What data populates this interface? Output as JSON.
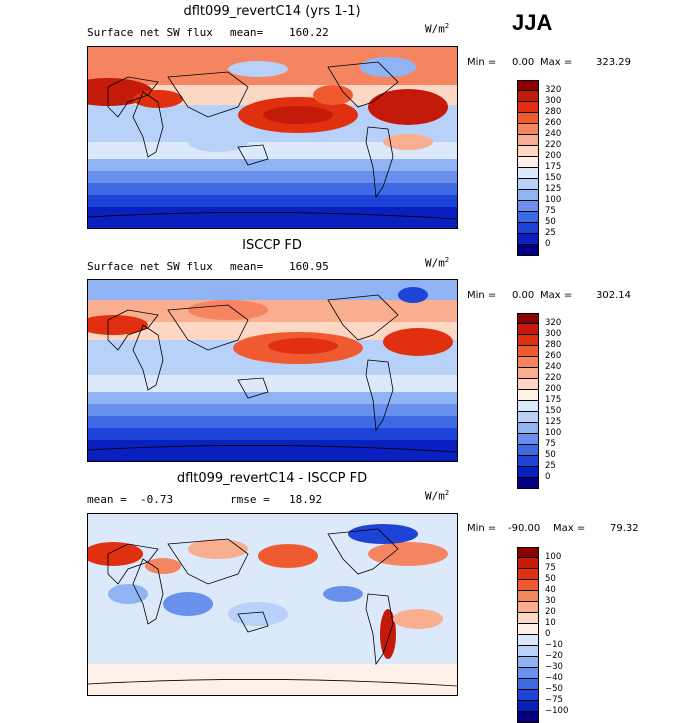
{
  "season": "JJA",
  "panels": [
    {
      "title": "dflt099_revertC14 (yrs 1-1)",
      "left_label": "Surface net SW flux",
      "stat_label": "mean=",
      "stat_value": "160.22",
      "units": "W/m",
      "units_exp": "2",
      "min_label": "Min =",
      "min_value": "0.00",
      "max_label": "Max =",
      "max_value": "323.29",
      "levels": [
        "320",
        "300",
        "280",
        "260",
        "240",
        "220",
        "200",
        "175",
        "150",
        "125",
        "100",
        "75",
        "50",
        "25",
        "0"
      ],
      "colors": [
        "#8b0000",
        "#c41a0a",
        "#e03010",
        "#f05a30",
        "#f58560",
        "#f9ae90",
        "#fcd8c4",
        "#fff1e8",
        "#dce9fb",
        "#b7d1f8",
        "#8fb3f3",
        "#6890ec",
        "#3e6ae3",
        "#1d44d6",
        "#0a1fbf",
        "#000080"
      ]
    },
    {
      "title": "ISCCP FD",
      "left_label": "Surface net SW flux",
      "stat_label": "mean=",
      "stat_value": "160.95",
      "units": "W/m",
      "units_exp": "2",
      "min_label": "Min =",
      "min_value": "0.00",
      "max_label": "Max =",
      "max_value": "302.14",
      "levels": [
        "320",
        "300",
        "280",
        "260",
        "240",
        "220",
        "200",
        "175",
        "150",
        "125",
        "100",
        "75",
        "50",
        "25",
        "0"
      ],
      "colors": [
        "#8b0000",
        "#c41a0a",
        "#e03010",
        "#f05a30",
        "#f58560",
        "#f9ae90",
        "#fcd8c4",
        "#fff1e8",
        "#dce9fb",
        "#b7d1f8",
        "#8fb3f3",
        "#6890ec",
        "#3e6ae3",
        "#1d44d6",
        "#0a1fbf",
        "#000080"
      ]
    },
    {
      "title": "dflt099_revertC14 - ISCCP FD",
      "left_label": "mean =",
      "stat_label": "rmse =",
      "left_value": "-0.73",
      "stat_value": "18.92",
      "units": "W/m",
      "units_exp": "2",
      "min_label": "Min =",
      "min_value": "-90.00",
      "max_label": "Max =",
      "max_value": "79.32",
      "levels": [
        "100",
        "75",
        "50",
        "40",
        "30",
        "20",
        "10",
        "0",
        "−10",
        "−20",
        "−30",
        "−40",
        "−50",
        "−75",
        "−100"
      ],
      "colors": [
        "#8b0000",
        "#c41a0a",
        "#e03010",
        "#f05a30",
        "#f58560",
        "#f9ae90",
        "#fcd8c4",
        "#fff1e8",
        "#dce9fb",
        "#b7d1f8",
        "#8fb3f3",
        "#6890ec",
        "#3e6ae3",
        "#1d44d6",
        "#0a1fbf",
        "#000080"
      ]
    }
  ]
}
